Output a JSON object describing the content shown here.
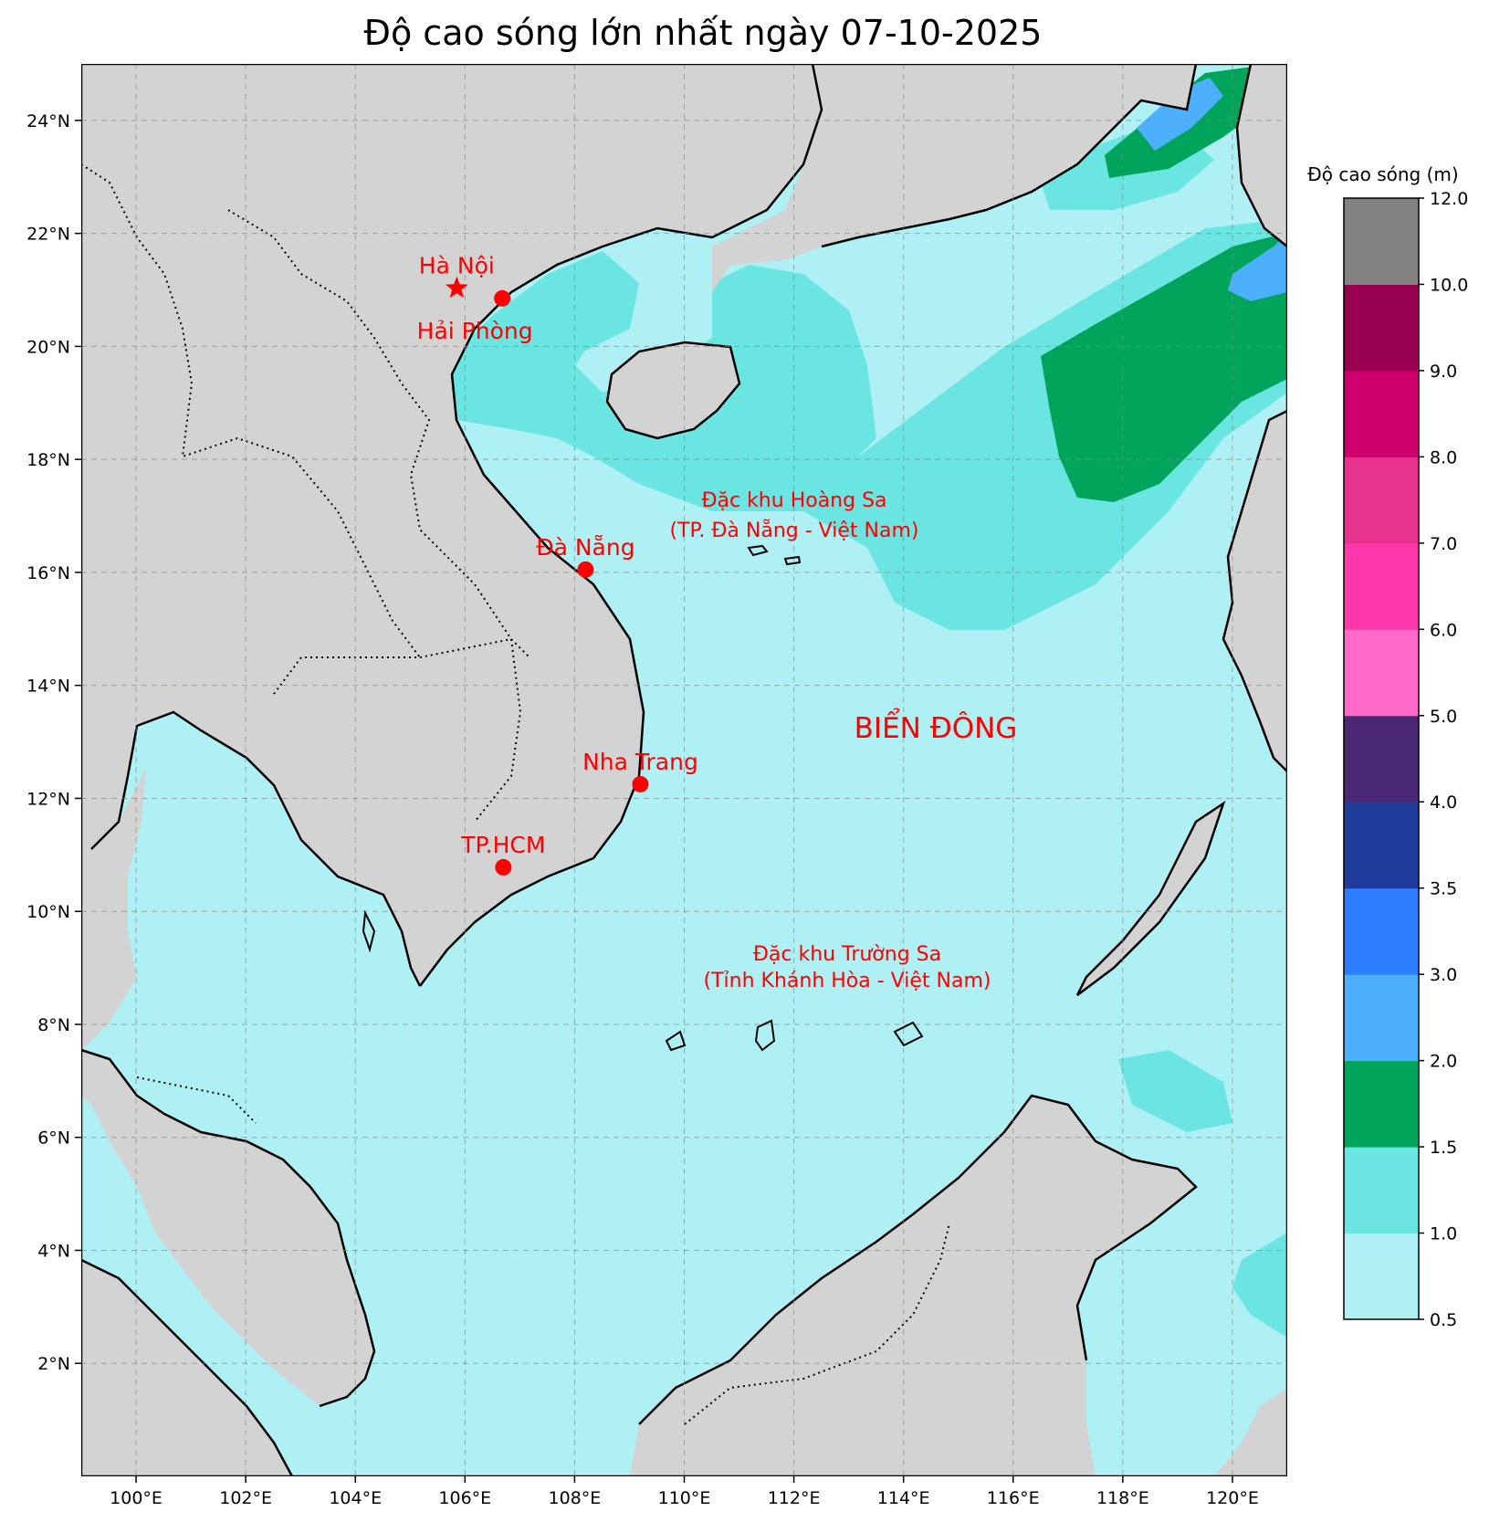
{
  "title": "Độ cao sóng lớn nhất ngày 07-10-2025",
  "map": {
    "lon_range": [
      99,
      121
    ],
    "lat_range": [
      0,
      25
    ],
    "lon_ticks": [
      {
        "value": 100,
        "label": "100°E"
      },
      {
        "value": 102,
        "label": "102°E"
      },
      {
        "value": 104,
        "label": "104°E"
      },
      {
        "value": 106,
        "label": "106°E"
      },
      {
        "value": 108,
        "label": "108°E"
      },
      {
        "value": 110,
        "label": "110°E"
      },
      {
        "value": 112,
        "label": "112°E"
      },
      {
        "value": 114,
        "label": "114°E"
      },
      {
        "value": 116,
        "label": "116°E"
      },
      {
        "value": 118,
        "label": "118°E"
      },
      {
        "value": 120,
        "label": "120°E"
      }
    ],
    "lat_ticks": [
      {
        "value": 2,
        "label": "2°N"
      },
      {
        "value": 4,
        "label": "4°N"
      },
      {
        "value": 6,
        "label": "6°N"
      },
      {
        "value": 8,
        "label": "8°N"
      },
      {
        "value": 10,
        "label": "10°N"
      },
      {
        "value": 12,
        "label": "12°N"
      },
      {
        "value": 14,
        "label": "14°N"
      },
      {
        "value": 16,
        "label": "16°N"
      },
      {
        "value": 18,
        "label": "18°N"
      },
      {
        "value": 20,
        "label": "20°N"
      },
      {
        "value": 22,
        "label": "22°N"
      },
      {
        "value": 24,
        "label": "24°N"
      }
    ],
    "grid": true,
    "colors": {
      "land": "#d3d3d3",
      "sea_base": "#aff0f5",
      "marker": "#ff0000"
    }
  },
  "cities": [
    {
      "name": "Hà Nội",
      "lon": 105.85,
      "lat": 21.03,
      "marker": "star"
    },
    {
      "name": "Hải Phòng",
      "lon": 106.68,
      "lat": 20.85,
      "marker": "dot"
    },
    {
      "name": "Đà Nẵng",
      "lon": 108.2,
      "lat": 16.05,
      "marker": "dot"
    },
    {
      "name": "Nha Trang",
      "lon": 109.2,
      "lat": 12.25,
      "marker": "dot"
    },
    {
      "name": "TP.HCM",
      "lon": 106.7,
      "lat": 10.78,
      "marker": "dot"
    }
  ],
  "regions": {
    "hoang_sa": {
      "line1": "Đặc khu Hoàng Sa",
      "line2": "(TP. Đà Nẵng - Việt Nam)"
    },
    "truong_sa": {
      "line1": "Đặc khu Trường Sa",
      "line2": "(Tỉnh Khánh Hòa - Việt Nam)"
    },
    "sea_name": "BIỂN ĐÔNG"
  },
  "colorbar": {
    "title": "Độ cao sóng (m)",
    "levels": [
      "0.5",
      "1.0",
      "1.5",
      "2.0",
      "3.0",
      "3.5",
      "4.0",
      "5.0",
      "6.0",
      "7.0",
      "8.0",
      "9.0",
      "10.0",
      "12.0"
    ],
    "colors": [
      "#aff0f5",
      "#6ae5e2",
      "#00a55b",
      "#4db0ff",
      "#2d7dff",
      "#1e3c9b",
      "#4b2873",
      "#ff69c8",
      "#ff37aa",
      "#e6328c",
      "#cd006e",
      "#9b0050",
      "#828282"
    ]
  }
}
